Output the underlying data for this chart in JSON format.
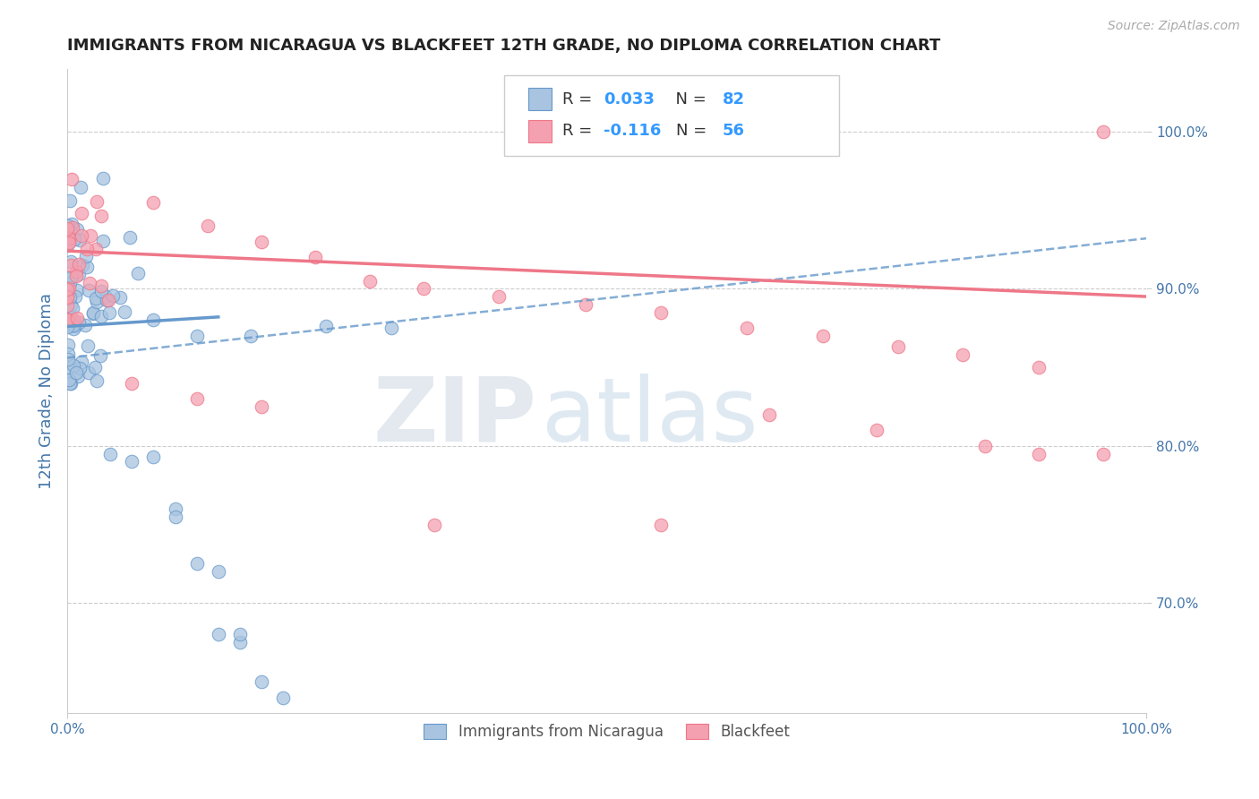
{
  "title": "IMMIGRANTS FROM NICARAGUA VS BLACKFEET 12TH GRADE, NO DIPLOMA CORRELATION CHART",
  "source": "Source: ZipAtlas.com",
  "ylabel": "12th Grade, No Diploma",
  "xlim": [
    0.0,
    1.0
  ],
  "ylim": [
    0.63,
    1.04
  ],
  "ytick_labels": [
    "70.0%",
    "80.0%",
    "90.0%",
    "100.0%"
  ],
  "ytick_positions": [
    0.7,
    0.8,
    0.9,
    1.0
  ],
  "legend_label1": "Immigrants from Nicaragua",
  "legend_label2": "Blackfeet",
  "r1_label": "R = ",
  "r1_val": "0.033",
  "n1_label": "N = ",
  "n1_val": "82",
  "r2_label": "R = ",
  "r2_val": "-0.116",
  "n2_label": "N = ",
  "n2_val": "56",
  "color_blue": "#a8c4e0",
  "color_pink": "#f4a0b0",
  "line_blue": "#6699cc",
  "line_pink": "#ee7788",
  "watermark_zip": "ZIP",
  "watermark_atlas": "atlas",
  "background_color": "#ffffff",
  "grid_color": "#cccccc",
  "blue_solid_line": [
    0.0,
    0.876,
    0.14,
    0.882
  ],
  "blue_dashed_line": [
    0.0,
    0.856,
    1.0,
    0.932
  ],
  "pink_solid_line": [
    0.0,
    0.924,
    1.0,
    0.895
  ]
}
